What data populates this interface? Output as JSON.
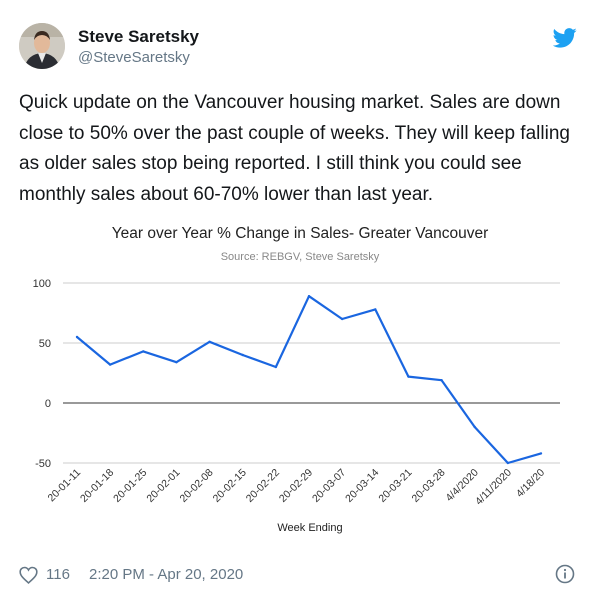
{
  "tweet": {
    "author_name": "Steve Saretsky",
    "author_handle": "@SteveSaretsky",
    "text": "Quick update on the Vancouver housing market. Sales are down close to 50% over the past couple of weeks. They will keep falling as older sales stop being reported. I still think you could see monthly sales about 60-70% lower than last year.",
    "likes": "116",
    "timestamp": "2:20 PM - Apr 20, 2020",
    "brand_color": "#1da1f2"
  },
  "icons": {
    "logo": "twitter-bird-icon",
    "like": "heart-icon",
    "info": "info-icon"
  },
  "chart_data": {
    "type": "line",
    "title": "Year over Year % Change in Sales- Greater Vancouver",
    "subtitle": "Source: REBGV, Steve Saretsky",
    "xlabel": "Week Ending",
    "ylabel": "",
    "ylim": [
      -50,
      100
    ],
    "yticks": [
      100,
      50,
      0,
      -50
    ],
    "grid": true,
    "line_color": "#1a66e0",
    "categories": [
      "20-01-11",
      "20-01-18",
      "20-01-25",
      "20-02-01",
      "20-02-08",
      "20-02-15",
      "20-02-22",
      "20-02-29",
      "20-03-07",
      "20-03-14",
      "20-03-21",
      "20-03-28",
      "4/4/2020",
      "4/11/2020",
      "4/18/20"
    ],
    "series": [
      {
        "values": [
          55,
          32,
          43,
          34,
          51,
          40,
          30,
          89,
          70,
          78,
          22,
          19,
          -20,
          -50,
          -42
        ]
      }
    ]
  }
}
